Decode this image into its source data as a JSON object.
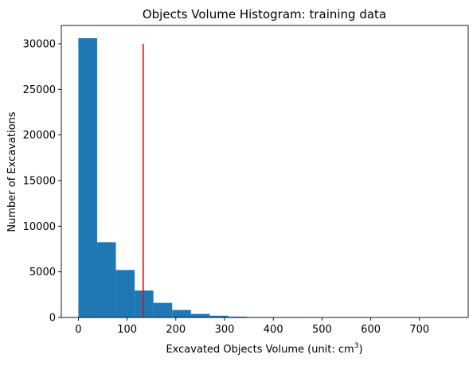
{
  "chart_data": {
    "type": "bar",
    "subtype": "histogram",
    "title": "Objects Volume Histogram: training data",
    "xlabel": "Excavated Objects Volume (unit: cm",
    "xlabel_superscript": "3",
    "xlabel_suffix": ")",
    "ylabel": "Number of Excavations",
    "bins": [
      {
        "x0": 0,
        "x1": 38.5,
        "count": 30600
      },
      {
        "x0": 38.5,
        "x1": 77,
        "count": 8250
      },
      {
        "x0": 77,
        "x1": 115.5,
        "count": 5200
      },
      {
        "x0": 115.5,
        "x1": 154,
        "count": 2950
      },
      {
        "x0": 154,
        "x1": 192.5,
        "count": 1600
      },
      {
        "x0": 192.5,
        "x1": 231,
        "count": 820
      },
      {
        "x0": 231,
        "x1": 269.5,
        "count": 390
      },
      {
        "x0": 269.5,
        "x1": 308,
        "count": 190
      },
      {
        "x0": 308,
        "x1": 346.5,
        "count": 90
      },
      {
        "x0": 346.5,
        "x1": 385,
        "count": 40
      },
      {
        "x0": 385,
        "x1": 423.5,
        "count": 20
      },
      {
        "x0": 423.5,
        "x1": 462,
        "count": 10
      },
      {
        "x0": 462,
        "x1": 500.5,
        "count": 6
      },
      {
        "x0": 500.5,
        "x1": 539,
        "count": 4
      },
      {
        "x0": 539,
        "x1": 577.5,
        "count": 3
      },
      {
        "x0": 577.5,
        "x1": 616,
        "count": 2
      },
      {
        "x0": 616,
        "x1": 654.5,
        "count": 1
      },
      {
        "x0": 654.5,
        "x1": 693,
        "count": 1
      },
      {
        "x0": 693,
        "x1": 731.5,
        "count": 1
      },
      {
        "x0": 731.5,
        "x1": 770,
        "count": 1
      }
    ],
    "vline": {
      "x": 133,
      "y0": 0,
      "y1": 30000,
      "color": "#ff0000"
    },
    "xlim": [
      -35,
      800
    ],
    "ylim": [
      0,
      32000
    ],
    "xticks": [
      0,
      100,
      200,
      300,
      400,
      500,
      600,
      700
    ],
    "yticks": [
      0,
      5000,
      10000,
      15000,
      20000,
      25000,
      30000
    ],
    "bar_color": "#1f77b4",
    "grid": false,
    "legend": "none"
  }
}
